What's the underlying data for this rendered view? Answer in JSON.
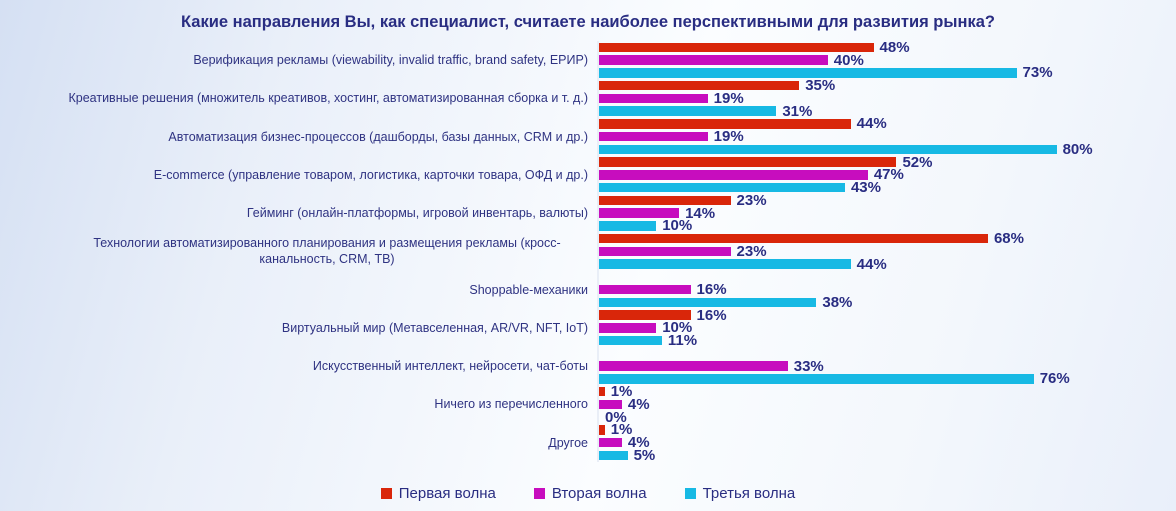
{
  "title": "Какие направления Вы, как специалист, считаете наиболее перспективными для развития рынка?",
  "colors": {
    "wave1": "#d9260a",
    "wave2": "#c70dbe",
    "wave3": "#17b9e4",
    "text_navy": "#292d82",
    "axis_line": "#e9eef7"
  },
  "legend": [
    "Первая волна",
    "Вторая волна",
    "Третья волна"
  ],
  "chart_data": {
    "type": "bar",
    "orientation": "horizontal",
    "unit": "%",
    "title": "Какие направления Вы, как специалист, считаете наиболее перспективными для развития рынка?",
    "xlim": [
      0,
      100
    ],
    "grid": false,
    "legend_position": "bottom",
    "categories": [
      "Верификация рекламы (viewability, invalid traffic, brand safety, ЕРИР)",
      "Креативные решения (множитель креативов, хостинг, автоматизированная сборка и т. д.)",
      "Автоматизация бизнес-процессов (дашборды, базы данных, CRM и др.)",
      "E-commerce (управление товаром, логистика, карточки товара, ОФД и др.)",
      "Гейминг (онлайн-платформы, игровой инвентарь, валюты)",
      "Технологии автоматизированного планирования и размещения рекламы (кросс-канальность, CRM, ТВ)",
      "Shoppable-механики",
      "Виртуальный мир (Метавселенная, AR/VR, NFT, IoT)",
      "Искусственный интеллект, нейросети, чат-боты",
      "Ничего из перечисленного",
      "Другое"
    ],
    "series": [
      {
        "name": "Первая волна",
        "color": "#d9260a",
        "values": [
          48,
          35,
          44,
          52,
          23,
          68,
          null,
          16,
          null,
          1,
          1
        ]
      },
      {
        "name": "Вторая волна",
        "color": "#c70dbe",
        "values": [
          40,
          19,
          19,
          47,
          14,
          23,
          16,
          10,
          33,
          4,
          4
        ]
      },
      {
        "name": "Третья волна",
        "color": "#17b9e4",
        "values": [
          73,
          31,
          80,
          43,
          10,
          44,
          38,
          11,
          76,
          0,
          5
        ]
      }
    ]
  }
}
